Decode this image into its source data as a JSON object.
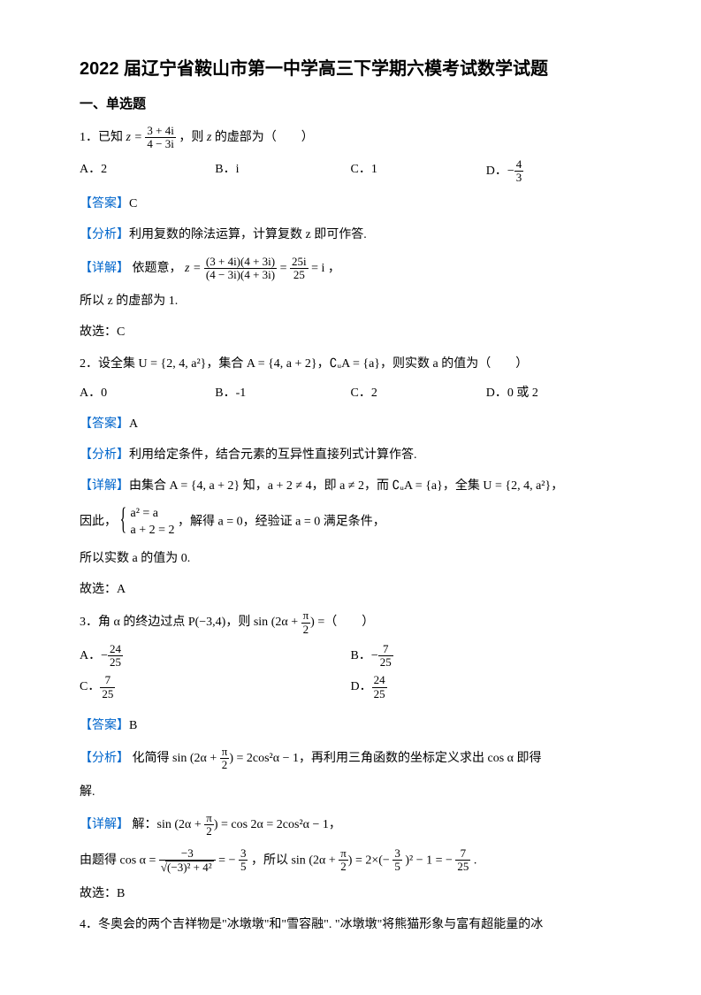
{
  "title": "2022 届辽宁省鞍山市第一中学高三下学期六模考试数学试题",
  "section1": "一、单选题",
  "q1": {
    "stem_a": "1．已知 ",
    "stem_b": "，则 ",
    "stem_c": " 的虚部为（　　）",
    "z_eq": "z =",
    "frac_num": "3 + 4i",
    "frac_den": "4 − 3i",
    "z": "z",
    "optA": "A．2",
    "optB": "B．i",
    "optC": "C．1",
    "optD_pre": "D．",
    "optD_num": "4",
    "optD_den": "3",
    "ans_label": "【答案】",
    "ans": "C",
    "ana_label": "【分析】",
    "ana": "利用复数的除法运算，计算复数 z 即可作答.",
    "det_label": "【详解】",
    "det_a": "依题意，",
    "det_eq1": "z =",
    "det_num1": "(3 + 4i)(4 + 3i)",
    "det_den1": "(4 − 3i)(4 + 3i)",
    "det_eq2": "=",
    "det_num2": "25i",
    "det_den2": "25",
    "det_eq3": "= i ，",
    "line2": "所以 z 的虚部为 1.",
    "line3": "故选：C"
  },
  "q2": {
    "stem": "2．设全集 U = {2, 4, a²}，集合 A = {4, a + 2}，∁ᵤA = {a}，则实数 a 的值为（　　）",
    "optA": "A．0",
    "optB": "B．-1",
    "optC": "C．2",
    "optD": "D．0 或 2",
    "ans_label": "【答案】",
    "ans": "A",
    "ana_label": "【分析】",
    "ana": "利用给定条件，结合元素的互异性直接列式计算作答.",
    "det_label": "【详解】",
    "det": "由集合 A = {4, a + 2} 知，a + 2 ≠ 4，即 a ≠ 2，而 ∁ᵤA = {a}，全集 U = {2, 4, a²}，",
    "sys_pre": "因此，",
    "sys1": "a² = a",
    "sys2": "a + 2 = 2",
    "sys_post": "，解得 a = 0，经验证 a = 0 满足条件，",
    "line2": "所以实数 a 的值为 0.",
    "line3": "故选：A"
  },
  "q3": {
    "stem_a": "3．角 α 的终边过点 P(−3,4)，则 sin",
    "stem_inner": "2α +",
    "stem_frac_num": "π",
    "stem_frac_den": "2",
    "stem_b": " =（　　）",
    "optA_pre": "A．",
    "optA_num": "24",
    "optA_den": "25",
    "optB_pre": "B．",
    "optB_num": "7",
    "optB_den": "25",
    "optC_pre": "C．",
    "optC_num": "7",
    "optC_den": "25",
    "optD_pre": "D．",
    "optD_num": "24",
    "optD_den": "25",
    "ans_label": "【答案】",
    "ans": "B",
    "ana_label": "【分析】",
    "ana_a": "化简得 sin",
    "ana_inner": "2α +",
    "ana_b": " = 2cos²α − 1，再利用三角函数的坐标定义求出 cos α 即得",
    "ana_c": "解.",
    "det_label": "【详解】",
    "det_a": "解：sin",
    "det_b": " = cos 2α = 2cos²α − 1，",
    "line2_a": "由题得 cos α =",
    "line2_num1": "−3",
    "line2_den1_a": "(−3)² + 4²",
    "line2_b": " = −",
    "line2_num2": "3",
    "line2_den2": "5",
    "line2_c": "，所以 sin",
    "line2_d": " = 2×(−",
    "line2_num3": "3",
    "line2_den3": "5",
    "line2_e": ")² − 1 = −",
    "line2_num4": "7",
    "line2_den4": "25",
    "line2_f": " .",
    "line3": "故选：B"
  },
  "q4": {
    "stem": "4．冬奥会的两个吉祥物是\"冰墩墩\"和\"雪容融\". \"冰墩墩\"将熊猫形象与富有超能量的冰"
  }
}
